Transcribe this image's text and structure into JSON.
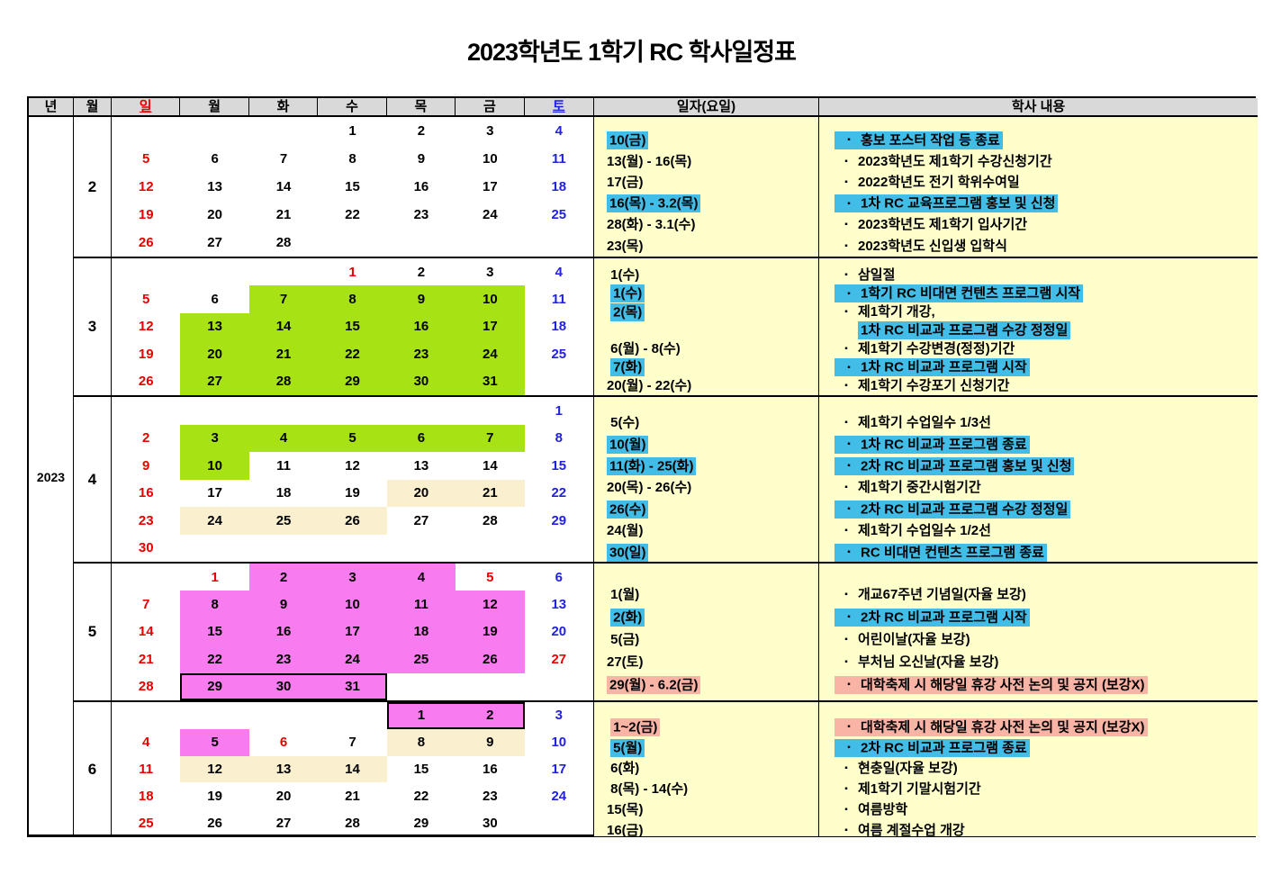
{
  "title": "2023학년도 1학기 RC 학사일정표",
  "year_label": "2023",
  "header": {
    "year": "년",
    "month": "월",
    "days": [
      "일",
      "월",
      "화",
      "수",
      "목",
      "금",
      "토"
    ],
    "date_col": "일자(요일)",
    "content_col": "학사 내용"
  },
  "colors": {
    "header_gray": "#D9D9D9",
    "panel_yellow": "#FFFFCC",
    "period_green": "#A6E214",
    "period_pink": "#F87CF0",
    "exam_cream": "#FAF0D0",
    "highlight_blue": "#41BDE8",
    "highlight_salmon": "#FAB4A5",
    "sunday_red": "#E60000",
    "saturday_blue": "#2121DE"
  },
  "months": [
    {
      "label": "2",
      "weeks": [
        [
          null,
          null,
          null,
          {
            "d": "1"
          },
          {
            "d": "2"
          },
          {
            "d": "3"
          },
          {
            "d": "4",
            "c": "b"
          }
        ],
        [
          {
            "d": "5",
            "c": "r"
          },
          {
            "d": "6"
          },
          {
            "d": "7"
          },
          {
            "d": "8"
          },
          {
            "d": "9"
          },
          {
            "d": "10"
          },
          {
            "d": "11",
            "c": "b"
          }
        ],
        [
          {
            "d": "12",
            "c": "r"
          },
          {
            "d": "13"
          },
          {
            "d": "14"
          },
          {
            "d": "15"
          },
          {
            "d": "16"
          },
          {
            "d": "17"
          },
          {
            "d": "18",
            "c": "b"
          }
        ],
        [
          {
            "d": "19",
            "c": "r"
          },
          {
            "d": "20"
          },
          {
            "d": "21"
          },
          {
            "d": "22"
          },
          {
            "d": "23"
          },
          {
            "d": "24"
          },
          {
            "d": "25",
            "c": "b"
          }
        ],
        [
          {
            "d": "26",
            "c": "r"
          },
          {
            "d": "27"
          },
          {
            "d": "28"
          },
          null,
          null,
          null,
          null
        ]
      ],
      "dates": [
        {
          "t": "10(금)",
          "hl": "b"
        },
        {
          "t": "13(월) - 16(목)"
        },
        {
          "t": "17(금)"
        },
        {
          "t": "16(목) - 3.2(목)",
          "hl": "b"
        },
        {
          "t": "28(화) - 3.1(수)"
        },
        {
          "t": "23(목)"
        }
      ],
      "contents": [
        {
          "t": "홍보 포스터 작업 등 종료",
          "hl": "b"
        },
        {
          "t": "2023학년도 제1학기 수강신청기간"
        },
        {
          "t": "2022학년도 전기 학위수여일"
        },
        {
          "t": "1차 RC 교육프로그램 홍보 및 신청",
          "hl": "b"
        },
        {
          "t": "2023학년도 제1학기 입사기간"
        },
        {
          "t": "2023학년도 신입생 입학식"
        }
      ]
    },
    {
      "label": "3",
      "weeks": [
        [
          null,
          null,
          null,
          {
            "d": "1",
            "c": "r"
          },
          {
            "d": "2"
          },
          {
            "d": "3"
          },
          {
            "d": "4",
            "c": "b"
          }
        ],
        [
          {
            "d": "5",
            "c": "r"
          },
          {
            "d": "6"
          },
          {
            "d": "7",
            "bg": "g"
          },
          {
            "d": "8",
            "bg": "g"
          },
          {
            "d": "9",
            "bg": "g"
          },
          {
            "d": "10",
            "bg": "g"
          },
          {
            "d": "11",
            "c": "b"
          }
        ],
        [
          {
            "d": "12",
            "c": "r"
          },
          {
            "d": "13",
            "bg": "g"
          },
          {
            "d": "14",
            "bg": "g"
          },
          {
            "d": "15",
            "bg": "g"
          },
          {
            "d": "16",
            "bg": "g"
          },
          {
            "d": "17",
            "bg": "g"
          },
          {
            "d": "18",
            "c": "b"
          }
        ],
        [
          {
            "d": "19",
            "c": "r"
          },
          {
            "d": "20",
            "bg": "g"
          },
          {
            "d": "21",
            "bg": "g"
          },
          {
            "d": "22",
            "bg": "g"
          },
          {
            "d": "23",
            "bg": "g"
          },
          {
            "d": "24",
            "bg": "g"
          },
          {
            "d": "25",
            "c": "b"
          }
        ],
        [
          {
            "d": "26",
            "c": "r"
          },
          {
            "d": "27",
            "bg": "g"
          },
          {
            "d": "28",
            "bg": "g"
          },
          {
            "d": "29",
            "bg": "g"
          },
          {
            "d": "30",
            "bg": "g"
          },
          {
            "d": "31",
            "bg": "g"
          },
          null
        ]
      ],
      "dates": [
        {
          "pre": " ",
          "t": "1(수)"
        },
        {
          "pre": " ",
          "t": "1(수)",
          "hl": "b"
        },
        {
          "pre": " ",
          "t": "2(목)",
          "hl": "b"
        },
        {
          "t": ""
        },
        {
          "pre": " ",
          "t": "6(월) - 8(수)"
        },
        {
          "pre": " ",
          "t": "7(화)",
          "hl": "b"
        },
        {
          "t": "20(월) - 22(수)"
        }
      ],
      "contents": [
        {
          "t": "삼일절"
        },
        {
          "t": "1학기 RC 비대면 컨텐츠 프로그램 시작",
          "hl": "b"
        },
        {
          "t": "제1학기 개강,"
        },
        {
          "t": "1차 RC 비교과 프로그램 수강 정정일",
          "hl": "b",
          "cont": true
        },
        {
          "t": "제1학기 수강변경(정정)기간"
        },
        {
          "t": "1차 RC 비교과 프로그램 시작",
          "hl": "b"
        },
        {
          "t": "제1학기 수강포기 신청기간"
        }
      ]
    },
    {
      "label": "4",
      "weeks": [
        [
          null,
          null,
          null,
          null,
          null,
          null,
          {
            "d": "1",
            "c": "b"
          }
        ],
        [
          {
            "d": "2",
            "c": "r"
          },
          {
            "d": "3",
            "bg": "g"
          },
          {
            "d": "4",
            "bg": "g"
          },
          {
            "d": "5",
            "bg": "g"
          },
          {
            "d": "6",
            "bg": "g"
          },
          {
            "d": "7",
            "bg": "g"
          },
          {
            "d": "8",
            "c": "b"
          }
        ],
        [
          {
            "d": "9",
            "c": "r"
          },
          {
            "d": "10",
            "bg": "g"
          },
          {
            "d": "11"
          },
          {
            "d": "12"
          },
          {
            "d": "13"
          },
          {
            "d": "14"
          },
          {
            "d": "15",
            "c": "b"
          }
        ],
        [
          {
            "d": "16",
            "c": "r"
          },
          {
            "d": "17"
          },
          {
            "d": "18"
          },
          {
            "d": "19"
          },
          {
            "d": "20",
            "bg": "c"
          },
          {
            "d": "21",
            "bg": "c"
          },
          {
            "d": "22",
            "c": "b"
          }
        ],
        [
          {
            "d": "23",
            "c": "r"
          },
          {
            "d": "24",
            "bg": "c"
          },
          {
            "d": "25",
            "bg": "c"
          },
          {
            "d": "26",
            "bg": "c"
          },
          {
            "d": "27"
          },
          {
            "d": "28"
          },
          {
            "d": "29",
            "c": "b"
          }
        ],
        [
          {
            "d": "30",
            "c": "r"
          },
          null,
          null,
          null,
          null,
          null,
          null
        ]
      ],
      "dates": [
        {
          "pre": " ",
          "t": "5(수)"
        },
        {
          "t": "10(월)",
          "hl": "b"
        },
        {
          "t": "11(화) - 25(화)",
          "hl": "b"
        },
        {
          "t": "20(목) - 26(수)"
        },
        {
          "t": "26(수)",
          "hl": "b"
        },
        {
          "t": "24(월)"
        },
        {
          "t": "30(일)",
          "hl": "b"
        }
      ],
      "contents": [
        {
          "t": "제1학기 수업일수 1/3선"
        },
        {
          "t": "1차 RC 비교과 프로그램 종료",
          "hl": "b"
        },
        {
          "t": "2차 RC 비교과 프로그램 홍보 및 신청",
          "hl": "b"
        },
        {
          "t": "제1학기 중간시험기간"
        },
        {
          "t": "2차 RC 비교과 프로그램 수강 정정일",
          "hl": "b"
        },
        {
          "t": "제1학기 수업일수 1/2선"
        },
        {
          "t": "RC 비대면 컨텐츠 프로그램 종료",
          "hl": "b"
        }
      ]
    },
    {
      "label": "5",
      "weeks": [
        [
          null,
          {
            "d": "1",
            "c": "r"
          },
          {
            "d": "2",
            "bg": "p"
          },
          {
            "d": "3",
            "bg": "p"
          },
          {
            "d": "4",
            "bg": "p"
          },
          {
            "d": "5",
            "c": "r"
          },
          {
            "d": "6",
            "c": "b"
          }
        ],
        [
          {
            "d": "7",
            "c": "r"
          },
          {
            "d": "8",
            "bg": "p"
          },
          {
            "d": "9",
            "bg": "p"
          },
          {
            "d": "10",
            "bg": "p"
          },
          {
            "d": "11",
            "bg": "p"
          },
          {
            "d": "12",
            "bg": "p"
          },
          {
            "d": "13",
            "c": "b"
          }
        ],
        [
          {
            "d": "14",
            "c": "r"
          },
          {
            "d": "15",
            "bg": "p"
          },
          {
            "d": "16",
            "bg": "p"
          },
          {
            "d": "17",
            "bg": "p"
          },
          {
            "d": "18",
            "bg": "p"
          },
          {
            "d": "19",
            "bg": "p"
          },
          {
            "d": "20",
            "c": "b"
          }
        ],
        [
          {
            "d": "21",
            "c": "r"
          },
          {
            "d": "22",
            "bg": "p"
          },
          {
            "d": "23",
            "bg": "p"
          },
          {
            "d": "24",
            "bg": "p"
          },
          {
            "d": "25",
            "bg": "p"
          },
          {
            "d": "26",
            "bg": "p"
          },
          {
            "d": "27",
            "c": "r"
          }
        ],
        [
          {
            "d": "28",
            "c": "r"
          },
          {
            "d": "29",
            "bg": "p",
            "bd": "LTB"
          },
          {
            "d": "30",
            "bg": "p",
            "bd": "TB"
          },
          {
            "d": "31",
            "bg": "p",
            "bd": "TBR"
          },
          null,
          null,
          null
        ]
      ],
      "dates": [
        {
          "pre": " ",
          "t": "1(월)"
        },
        {
          "pre": " ",
          "t": "2(화)",
          "hl": "b"
        },
        {
          "pre": " ",
          "t": "5(금)"
        },
        {
          "t": "27(토)"
        },
        {
          "t": "29(월) - 6.2(금)",
          "hl": "s"
        }
      ],
      "contents": [
        {
          "t": "개교67주년 기념일(자율 보강)"
        },
        {
          "t": "2차 RC 비교과 프로그램 시작",
          "hl": "b"
        },
        {
          "t": "어린이날(자율 보강)"
        },
        {
          "t": "부처님 오신날(자율 보강)"
        },
        {
          "t": "대학축제 시 해당일 휴강 사전 논의 및 공지 (보강X)",
          "hl": "s"
        }
      ]
    },
    {
      "label": "6",
      "weeks": [
        [
          null,
          null,
          null,
          null,
          {
            "d": "1",
            "bg": "p",
            "bd": "LTB"
          },
          {
            "d": "2",
            "bg": "p",
            "bd": "TBR"
          },
          {
            "d": "3",
            "c": "b"
          }
        ],
        [
          {
            "d": "4",
            "c": "r"
          },
          {
            "d": "5",
            "bg": "p"
          },
          {
            "d": "6",
            "c": "r"
          },
          {
            "d": "7"
          },
          {
            "d": "8",
            "bg": "c"
          },
          {
            "d": "9",
            "bg": "c"
          },
          {
            "d": "10",
            "c": "b"
          }
        ],
        [
          {
            "d": "11",
            "c": "r"
          },
          {
            "d": "12",
            "bg": "c"
          },
          {
            "d": "13",
            "bg": "c"
          },
          {
            "d": "14",
            "bg": "c"
          },
          {
            "d": "15"
          },
          {
            "d": "16"
          },
          {
            "d": "17",
            "c": "b"
          }
        ],
        [
          {
            "d": "18",
            "c": "r"
          },
          {
            "d": "19"
          },
          {
            "d": "20"
          },
          {
            "d": "21"
          },
          {
            "d": "22"
          },
          {
            "d": "23"
          },
          {
            "d": "24",
            "c": "b"
          }
        ],
        [
          {
            "d": "25",
            "c": "r"
          },
          {
            "d": "26"
          },
          {
            "d": "27"
          },
          {
            "d": "28"
          },
          {
            "d": "29"
          },
          {
            "d": "30"
          },
          null
        ]
      ],
      "dates": [
        {
          "pre": " ",
          "t": "1~2(금)",
          "hl": "s"
        },
        {
          "pre": " ",
          "t": "5(월)",
          "hl": "b"
        },
        {
          "pre": " ",
          "t": "6(화)"
        },
        {
          "pre": " ",
          "t": "8(목) - 14(수)"
        },
        {
          "t": "15(목)"
        },
        {
          "t": "16(금)"
        }
      ],
      "contents": [
        {
          "t": "대학축제 시 해당일 휴강 사전 논의 및 공지 (보강X)",
          "hl": "s"
        },
        {
          "t": "2차 RC 비교과 프로그램 종료",
          "hl": "b"
        },
        {
          "t": "현충일(자율 보강)"
        },
        {
          "t": "제1학기 기말시험기간"
        },
        {
          "t": "여름방학"
        },
        {
          "t": "여름 계절수업 개강"
        }
      ]
    }
  ]
}
